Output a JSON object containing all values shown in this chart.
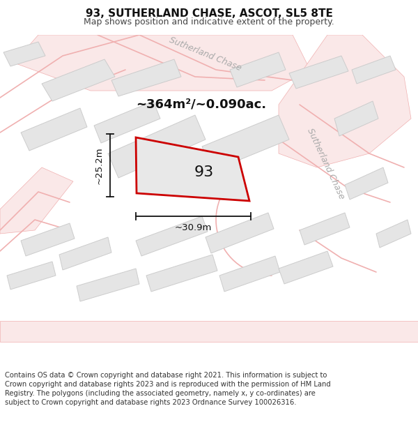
{
  "title": "93, SUTHERLAND CHASE, ASCOT, SL5 8TE",
  "subtitle": "Map shows position and indicative extent of the property.",
  "footer": "Contains OS data © Crown copyright and database right 2021. This information is subject to Crown copyright and database rights 2023 and is reproduced with the permission of HM Land Registry. The polygons (including the associated geometry, namely x, y co-ordinates) are subject to Crown copyright and database rights 2023 Ordnance Survey 100026316.",
  "area_label": "~364m²/~0.090ac.",
  "plot_number": "93",
  "width_label": "~30.9m",
  "height_label": "~25.2m",
  "map_bg": "#f7f7f7",
  "road_line_color": "#f0a8a8",
  "road_fill_color": "#fde8e8",
  "building_color": "#e5e5e5",
  "building_border": "#cccccc",
  "plot_fill": "#e5e5e5",
  "plot_border": "#cc0000",
  "street_label_color": "#aaaaaa",
  "dim_color": "#111111",
  "title_fontsize": 11,
  "subtitle_fontsize": 9,
  "area_fontsize": 13,
  "plot_num_fontsize": 16,
  "dim_fontsize": 9.5,
  "street_fontsize": 9,
  "footer_fontsize": 7.2
}
